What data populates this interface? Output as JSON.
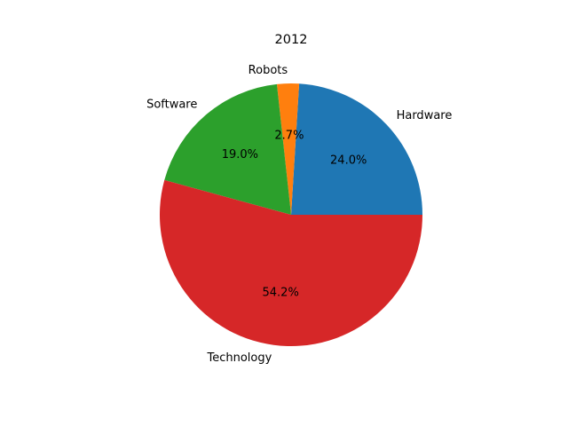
{
  "chart_data": {
    "type": "pie",
    "title": "2012",
    "categories": [
      "Hardware",
      "Robots",
      "Software",
      "Technology"
    ],
    "values": [
      24.0,
      2.7,
      19.0,
      54.2
    ],
    "percent_labels": [
      "24.0%",
      "2.7%",
      "19.0%",
      "54.2%"
    ],
    "colors": [
      "#1f77b4",
      "#ff7f0e",
      "#2ca02c",
      "#d62728"
    ],
    "start_angle_deg": 0,
    "direction": "counterclockwise",
    "legend": "none"
  }
}
